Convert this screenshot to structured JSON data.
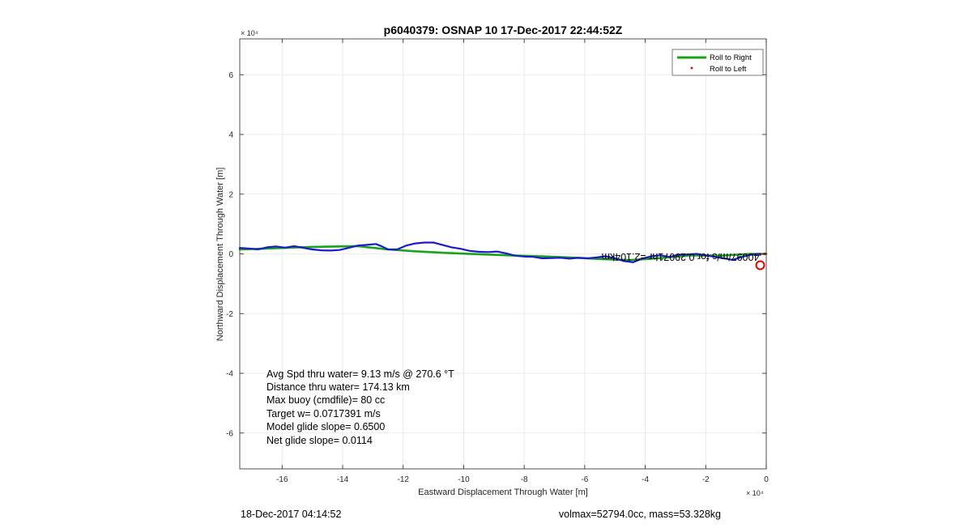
{
  "title": "p6040379: OSNAP 10 17-Dec-2017 22:44:52Z",
  "footer_left": "18-Dec-2017 04:14:52",
  "footer_right": "volmax=52794.0cc, mass=53.328kg",
  "x_exponent": "× 10⁴",
  "y_exponent": "× 10⁴",
  "annotation_lines": [
    "Avg Spd thru water=  9.13 m/s @ 270.6 °T",
    "Distance thru water= 174.13 km",
    "Max buoy (cmdfile)= 80 cc",
    "Target w= 0.0717391 m/s",
    "Model glide slope= 0.6500",
    "Net glide slope= 0.0114"
  ],
  "mirrored_label": "40097/m/s for 0.29071hr =2.104km",
  "colors": {
    "roll_right": "#1aa31a",
    "roll_left": "#e00000",
    "track": "#1a1acc",
    "grid": "#e6e6e6"
  },
  "chart_data": {
    "type": "line",
    "title": "p6040379: OSNAP 10 17-Dec-2017 22:44:52Z",
    "xlabel": "Eastward Displacement Through Water [m]",
    "ylabel": "Northward Displacement Through Water [m]",
    "x_scale_label": "×10^4",
    "y_scale_label": "×10^4",
    "xlim": [
      -17.4,
      0
    ],
    "ylim": [
      -7.2,
      7.2
    ],
    "xticks": [
      -16,
      -14,
      -12,
      -10,
      -8,
      -6,
      -4,
      -2,
      0
    ],
    "yticks": [
      -6,
      -4,
      -2,
      0,
      2,
      4,
      6
    ],
    "grid": true,
    "legend_position": "top-right",
    "legend": [
      "Roll to Right",
      "Roll to Left"
    ],
    "series": [
      {
        "name": "Roll to Right",
        "style": "line",
        "x": [
          -17.4,
          -16.5,
          -15.5,
          -14.5,
          -13.5,
          -12.5,
          -11.5,
          -10.5,
          -9.5,
          -8.5,
          -7.5,
          -6.5,
          -5.5,
          -4.5,
          -3.5,
          -2.5,
          -1.5,
          -0.5,
          0
        ],
        "y": [
          0.15,
          0.18,
          0.22,
          0.24,
          0.26,
          0.15,
          0.08,
          0.03,
          -0.01,
          -0.05,
          -0.08,
          -0.12,
          -0.17,
          -0.21,
          -0.14,
          -0.05,
          -0.06,
          0.0,
          0.0
        ]
      },
      {
        "name": "Roll to Left",
        "style": "marker",
        "x": [
          -0.05,
          -0.2
        ],
        "y": [
          0.0,
          -0.02
        ]
      },
      {
        "name": "",
        "style": "line",
        "x": [
          -17.4,
          -17.0,
          -16.8,
          -16.5,
          -16.2,
          -15.9,
          -15.6,
          -15.3,
          -15.0,
          -14.7,
          -14.4,
          -14.1,
          -13.8,
          -13.5,
          -13.2,
          -12.9,
          -12.7,
          -12.5,
          -12.2,
          -11.9,
          -11.6,
          -11.3,
          -11.0,
          -10.7,
          -10.4,
          -10.1,
          -9.8,
          -9.5,
          -9.2,
          -8.9,
          -8.6,
          -8.3,
          -8.0,
          -7.7,
          -7.4,
          -7.1,
          -6.8,
          -6.5,
          -6.2,
          -5.9,
          -5.6,
          -5.3,
          -5.0,
          -4.7,
          -4.4,
          -4.1,
          -3.8,
          -3.5,
          -3.2,
          -2.9,
          -2.6,
          -2.3,
          -2.0,
          -1.7,
          -1.4,
          -1.1,
          -0.8,
          -0.5,
          -0.2
        ],
        "y": [
          0.2,
          0.17,
          0.15,
          0.22,
          0.25,
          0.21,
          0.26,
          0.2,
          0.15,
          0.12,
          0.11,
          0.13,
          0.2,
          0.28,
          0.3,
          0.33,
          0.25,
          0.15,
          0.15,
          0.28,
          0.35,
          0.38,
          0.38,
          0.3,
          0.22,
          0.17,
          0.1,
          0.07,
          0.06,
          0.08,
          0.02,
          -0.06,
          -0.09,
          -0.1,
          -0.15,
          -0.14,
          -0.13,
          -0.16,
          -0.13,
          -0.15,
          -0.12,
          -0.08,
          -0.15,
          -0.24,
          -0.28,
          -0.16,
          -0.08,
          -0.05,
          -0.1,
          -0.03,
          -0.02,
          0.0,
          -0.05,
          -0.1,
          -0.15,
          -0.2,
          -0.1,
          -0.03,
          0.0
        ]
      }
    ],
    "markers": [
      {
        "type": "open-circle",
        "x": -0.2,
        "y": -0.38
      }
    ]
  }
}
